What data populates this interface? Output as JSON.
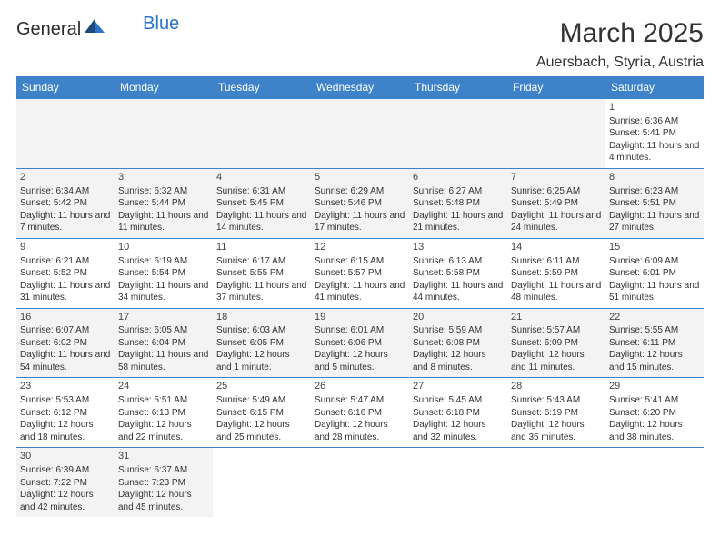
{
  "logo": {
    "general": "General",
    "blue": "Blue"
  },
  "title": "March 2025",
  "location": "Auersbach, Styria, Austria",
  "colors": {
    "header_bg": "#3e83c9",
    "header_text": "#ffffff",
    "border": "#3e83c9",
    "alt_bg": "#f3f3f3",
    "logo_blue": "#2874c7"
  },
  "weekdays": [
    "Sunday",
    "Monday",
    "Tuesday",
    "Wednesday",
    "Thursday",
    "Friday",
    "Saturday"
  ],
  "weeks": [
    [
      {
        "empty": true
      },
      {
        "empty": true
      },
      {
        "empty": true
      },
      {
        "empty": true
      },
      {
        "empty": true
      },
      {
        "empty": true
      },
      {
        "day": "1",
        "sunrise": "Sunrise: 6:36 AM",
        "sunset": "Sunset: 5:41 PM",
        "daylight": "Daylight: 11 hours and 4 minutes."
      }
    ],
    [
      {
        "day": "2",
        "alt": true,
        "sunrise": "Sunrise: 6:34 AM",
        "sunset": "Sunset: 5:42 PM",
        "daylight": "Daylight: 11 hours and 7 minutes."
      },
      {
        "day": "3",
        "alt": true,
        "sunrise": "Sunrise: 6:32 AM",
        "sunset": "Sunset: 5:44 PM",
        "daylight": "Daylight: 11 hours and 11 minutes."
      },
      {
        "day": "4",
        "alt": true,
        "sunrise": "Sunrise: 6:31 AM",
        "sunset": "Sunset: 5:45 PM",
        "daylight": "Daylight: 11 hours and 14 minutes."
      },
      {
        "day": "5",
        "alt": true,
        "sunrise": "Sunrise: 6:29 AM",
        "sunset": "Sunset: 5:46 PM",
        "daylight": "Daylight: 11 hours and 17 minutes."
      },
      {
        "day": "6",
        "alt": true,
        "sunrise": "Sunrise: 6:27 AM",
        "sunset": "Sunset: 5:48 PM",
        "daylight": "Daylight: 11 hours and 21 minutes."
      },
      {
        "day": "7",
        "alt": true,
        "sunrise": "Sunrise: 6:25 AM",
        "sunset": "Sunset: 5:49 PM",
        "daylight": "Daylight: 11 hours and 24 minutes."
      },
      {
        "day": "8",
        "alt": true,
        "sunrise": "Sunrise: 6:23 AM",
        "sunset": "Sunset: 5:51 PM",
        "daylight": "Daylight: 11 hours and 27 minutes."
      }
    ],
    [
      {
        "day": "9",
        "sunrise": "Sunrise: 6:21 AM",
        "sunset": "Sunset: 5:52 PM",
        "daylight": "Daylight: 11 hours and 31 minutes."
      },
      {
        "day": "10",
        "sunrise": "Sunrise: 6:19 AM",
        "sunset": "Sunset: 5:54 PM",
        "daylight": "Daylight: 11 hours and 34 minutes."
      },
      {
        "day": "11",
        "sunrise": "Sunrise: 6:17 AM",
        "sunset": "Sunset: 5:55 PM",
        "daylight": "Daylight: 11 hours and 37 minutes."
      },
      {
        "day": "12",
        "sunrise": "Sunrise: 6:15 AM",
        "sunset": "Sunset: 5:57 PM",
        "daylight": "Daylight: 11 hours and 41 minutes."
      },
      {
        "day": "13",
        "sunrise": "Sunrise: 6:13 AM",
        "sunset": "Sunset: 5:58 PM",
        "daylight": "Daylight: 11 hours and 44 minutes."
      },
      {
        "day": "14",
        "sunrise": "Sunrise: 6:11 AM",
        "sunset": "Sunset: 5:59 PM",
        "daylight": "Daylight: 11 hours and 48 minutes."
      },
      {
        "day": "15",
        "sunrise": "Sunrise: 6:09 AM",
        "sunset": "Sunset: 6:01 PM",
        "daylight": "Daylight: 11 hours and 51 minutes."
      }
    ],
    [
      {
        "day": "16",
        "alt": true,
        "sunrise": "Sunrise: 6:07 AM",
        "sunset": "Sunset: 6:02 PM",
        "daylight": "Daylight: 11 hours and 54 minutes."
      },
      {
        "day": "17",
        "alt": true,
        "sunrise": "Sunrise: 6:05 AM",
        "sunset": "Sunset: 6:04 PM",
        "daylight": "Daylight: 11 hours and 58 minutes."
      },
      {
        "day": "18",
        "alt": true,
        "sunrise": "Sunrise: 6:03 AM",
        "sunset": "Sunset: 6:05 PM",
        "daylight": "Daylight: 12 hours and 1 minute."
      },
      {
        "day": "19",
        "alt": true,
        "sunrise": "Sunrise: 6:01 AM",
        "sunset": "Sunset: 6:06 PM",
        "daylight": "Daylight: 12 hours and 5 minutes."
      },
      {
        "day": "20",
        "alt": true,
        "sunrise": "Sunrise: 5:59 AM",
        "sunset": "Sunset: 6:08 PM",
        "daylight": "Daylight: 12 hours and 8 minutes."
      },
      {
        "day": "21",
        "alt": true,
        "sunrise": "Sunrise: 5:57 AM",
        "sunset": "Sunset: 6:09 PM",
        "daylight": "Daylight: 12 hours and 11 minutes."
      },
      {
        "day": "22",
        "alt": true,
        "sunrise": "Sunrise: 5:55 AM",
        "sunset": "Sunset: 6:11 PM",
        "daylight": "Daylight: 12 hours and 15 minutes."
      }
    ],
    [
      {
        "day": "23",
        "sunrise": "Sunrise: 5:53 AM",
        "sunset": "Sunset: 6:12 PM",
        "daylight": "Daylight: 12 hours and 18 minutes."
      },
      {
        "day": "24",
        "sunrise": "Sunrise: 5:51 AM",
        "sunset": "Sunset: 6:13 PM",
        "daylight": "Daylight: 12 hours and 22 minutes."
      },
      {
        "day": "25",
        "sunrise": "Sunrise: 5:49 AM",
        "sunset": "Sunset: 6:15 PM",
        "daylight": "Daylight: 12 hours and 25 minutes."
      },
      {
        "day": "26",
        "sunrise": "Sunrise: 5:47 AM",
        "sunset": "Sunset: 6:16 PM",
        "daylight": "Daylight: 12 hours and 28 minutes."
      },
      {
        "day": "27",
        "sunrise": "Sunrise: 5:45 AM",
        "sunset": "Sunset: 6:18 PM",
        "daylight": "Daylight: 12 hours and 32 minutes."
      },
      {
        "day": "28",
        "sunrise": "Sunrise: 5:43 AM",
        "sunset": "Sunset: 6:19 PM",
        "daylight": "Daylight: 12 hours and 35 minutes."
      },
      {
        "day": "29",
        "sunrise": "Sunrise: 5:41 AM",
        "sunset": "Sunset: 6:20 PM",
        "daylight": "Daylight: 12 hours and 38 minutes."
      }
    ],
    [
      {
        "day": "30",
        "alt": true,
        "sunrise": "Sunrise: 6:39 AM",
        "sunset": "Sunset: 7:22 PM",
        "daylight": "Daylight: 12 hours and 42 minutes."
      },
      {
        "day": "31",
        "alt": true,
        "sunrise": "Sunrise: 6:37 AM",
        "sunset": "Sunset: 7:23 PM",
        "daylight": "Daylight: 12 hours and 45 minutes."
      },
      {
        "empty": true,
        "noborder": true
      },
      {
        "empty": true,
        "noborder": true
      },
      {
        "empty": true,
        "noborder": true
      },
      {
        "empty": true,
        "noborder": true
      },
      {
        "empty": true,
        "noborder": true
      }
    ]
  ]
}
